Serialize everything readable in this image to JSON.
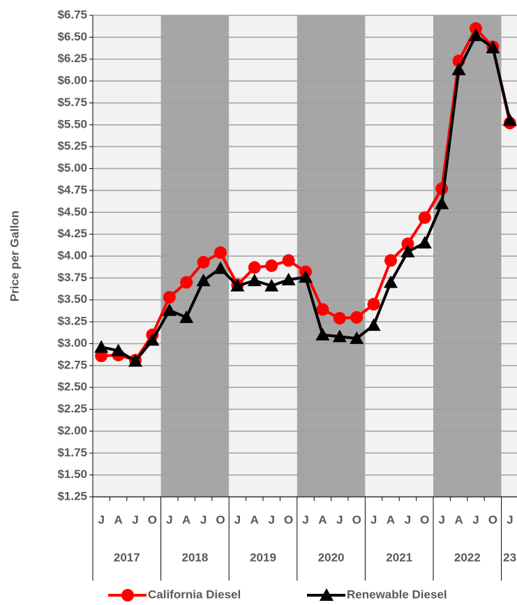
{
  "chart_data": {
    "type": "line",
    "y_label": "Price per Gallon",
    "categories": [
      "J",
      "A",
      "J",
      "O",
      "J",
      "A",
      "J",
      "O",
      "J",
      "A",
      "J",
      "O",
      "J",
      "A",
      "J",
      "O",
      "J",
      "A",
      "J",
      "O",
      "J",
      "A",
      "J",
      "O",
      "J"
    ],
    "years": [
      "2017",
      "2018",
      "2019",
      "2020",
      "2021",
      "2022",
      "23"
    ],
    "series": [
      {
        "name": "California Diesel",
        "color": "#ff0000",
        "marker": "circle",
        "values": [
          2.86,
          2.87,
          2.81,
          3.1,
          3.53,
          3.7,
          3.93,
          4.04,
          3.67,
          3.87,
          3.89,
          3.95,
          3.82,
          3.39,
          3.29,
          3.3,
          3.45,
          3.95,
          4.14,
          4.44,
          4.77,
          6.23,
          6.6,
          6.39,
          5.52
        ]
      },
      {
        "name": "Renewable Diesel",
        "color": "#000000",
        "marker": "triangle",
        "values": [
          2.96,
          2.92,
          2.8,
          3.04,
          3.38,
          3.3,
          3.72,
          3.86,
          3.66,
          3.72,
          3.66,
          3.73,
          3.76,
          3.1,
          3.08,
          3.06,
          3.21,
          3.7,
          4.05,
          4.15,
          4.6,
          6.13,
          6.52,
          6.38,
          5.55
        ]
      }
    ],
    "ylim": [
      1.25,
      6.75
    ],
    "yticks": [
      {
        "value": 1.25,
        "label": "$1.25"
      },
      {
        "value": 1.5,
        "label": "$1.50"
      },
      {
        "value": 1.75,
        "label": "$1.75"
      },
      {
        "value": 2.0,
        "label": "$2.00"
      },
      {
        "value": 2.25,
        "label": "$2.25"
      },
      {
        "value": 2.5,
        "label": "$2.50"
      },
      {
        "value": 2.75,
        "label": "$2.75"
      },
      {
        "value": 3.0,
        "label": "$3.00"
      },
      {
        "value": 3.25,
        "label": "$3.25"
      },
      {
        "value": 3.5,
        "label": "$3.50"
      },
      {
        "value": 3.75,
        "label": "$3.75"
      },
      {
        "value": 4.0,
        "label": "$4.00"
      },
      {
        "value": 4.25,
        "label": "$4.25"
      },
      {
        "value": 4.5,
        "label": "$4.50"
      },
      {
        "value": 4.75,
        "label": "$4.75"
      },
      {
        "value": 5.0,
        "label": "$5.00"
      },
      {
        "value": 5.25,
        "label": "$5.25"
      },
      {
        "value": 5.5,
        "label": "$5.50"
      },
      {
        "value": 5.75,
        "label": "$5.75"
      },
      {
        "value": 6.0,
        "label": "$6.00"
      },
      {
        "value": 6.25,
        "label": "$6.25"
      },
      {
        "value": 6.5,
        "label": "$6.50"
      },
      {
        "value": 6.75,
        "label": "$6.75"
      }
    ],
    "grid": true
  }
}
